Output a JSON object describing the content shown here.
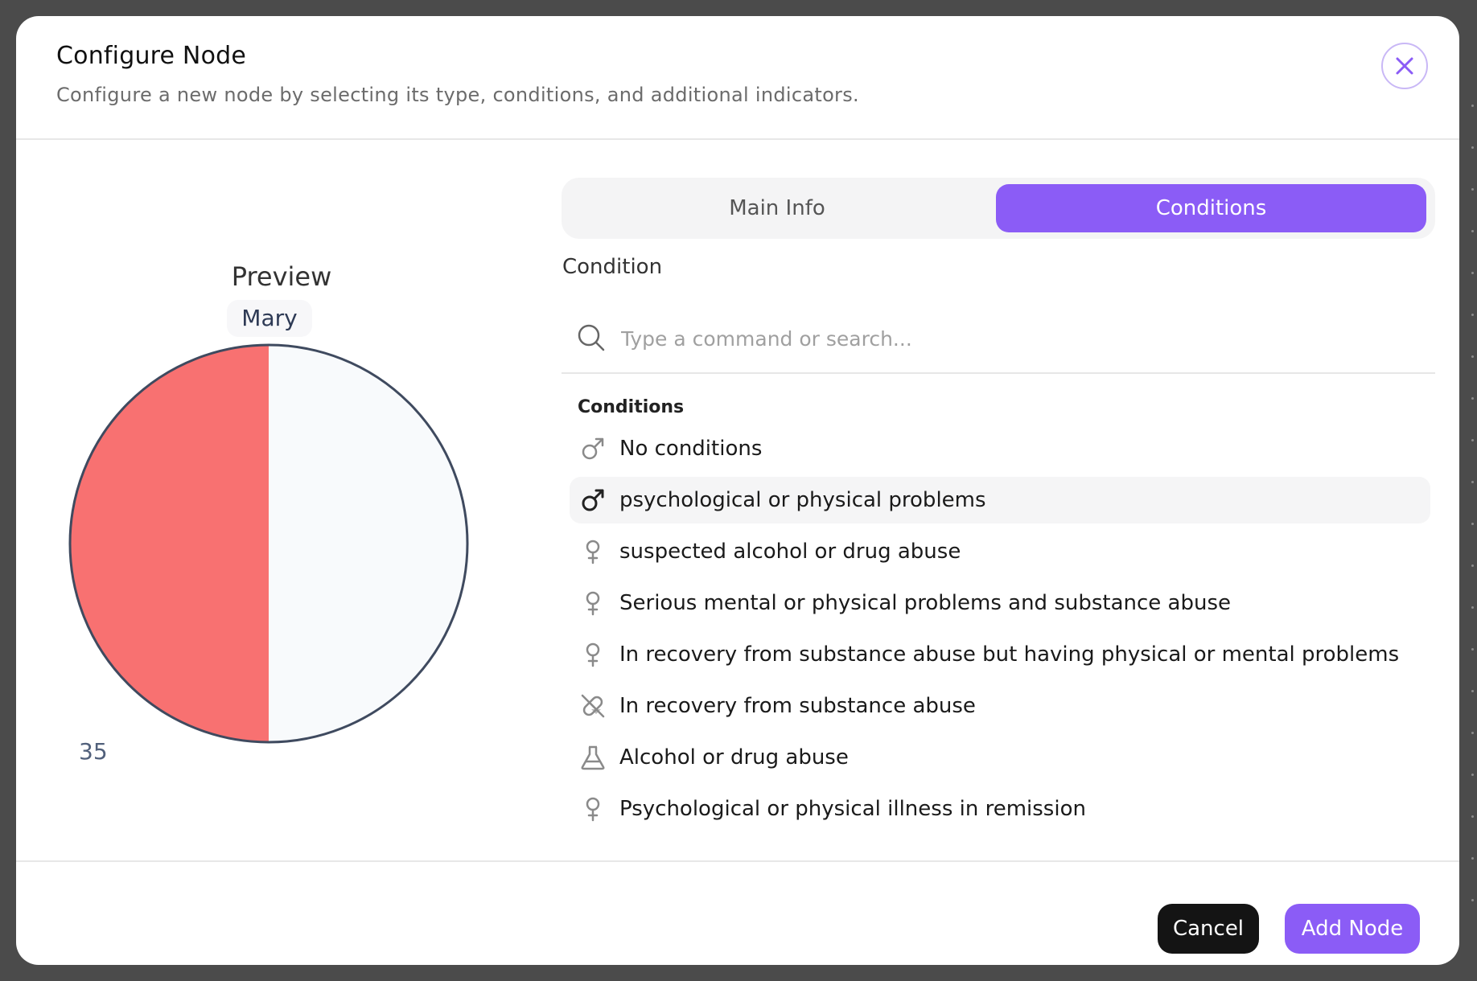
{
  "dialog": {
    "title": "Configure Node",
    "subtitle": "Configure a new node by selecting its type, conditions, and additional indicators."
  },
  "preview": {
    "label": "Preview",
    "name": "Mary",
    "age": "35",
    "chart_data": {
      "type": "pie",
      "values": [
        50,
        50
      ],
      "colors": [
        "#f87171",
        "#f8fafc"
      ],
      "outline_color": "#3f4a5f"
    }
  },
  "tabs": [
    {
      "label": "Main Info",
      "active": false
    },
    {
      "label": "Conditions",
      "active": true
    }
  ],
  "condition": {
    "label": "Condition",
    "search_placeholder": "Type a command or search...",
    "search_value": "",
    "group_heading": "Conditions",
    "items": [
      {
        "label": "No conditions",
        "icon": "male-icon",
        "highlighted": false
      },
      {
        "label": "psychological or physical problems",
        "icon": "male-icon",
        "highlighted": true
      },
      {
        "label": "suspected alcohol or drug abuse",
        "icon": "female-icon",
        "highlighted": false
      },
      {
        "label": "Serious mental or physical problems and substance abuse",
        "icon": "female-icon",
        "highlighted": false
      },
      {
        "label": "In recovery from substance abuse but having physical or mental problems",
        "icon": "female-icon",
        "highlighted": false
      },
      {
        "label": "In recovery from substance abuse",
        "icon": "pill-off-icon",
        "highlighted": false
      },
      {
        "label": "Alcohol or drug abuse",
        "icon": "flask-icon",
        "highlighted": false
      },
      {
        "label": "Psychological or physical illness in remission",
        "icon": "female-icon",
        "highlighted": false
      }
    ]
  },
  "footer": {
    "cancel_label": "Cancel",
    "add_label": "Add Node"
  },
  "colors": {
    "accent": "#8b5cf6",
    "pie_left": "#f87171",
    "pie_right": "#f8fafc"
  }
}
